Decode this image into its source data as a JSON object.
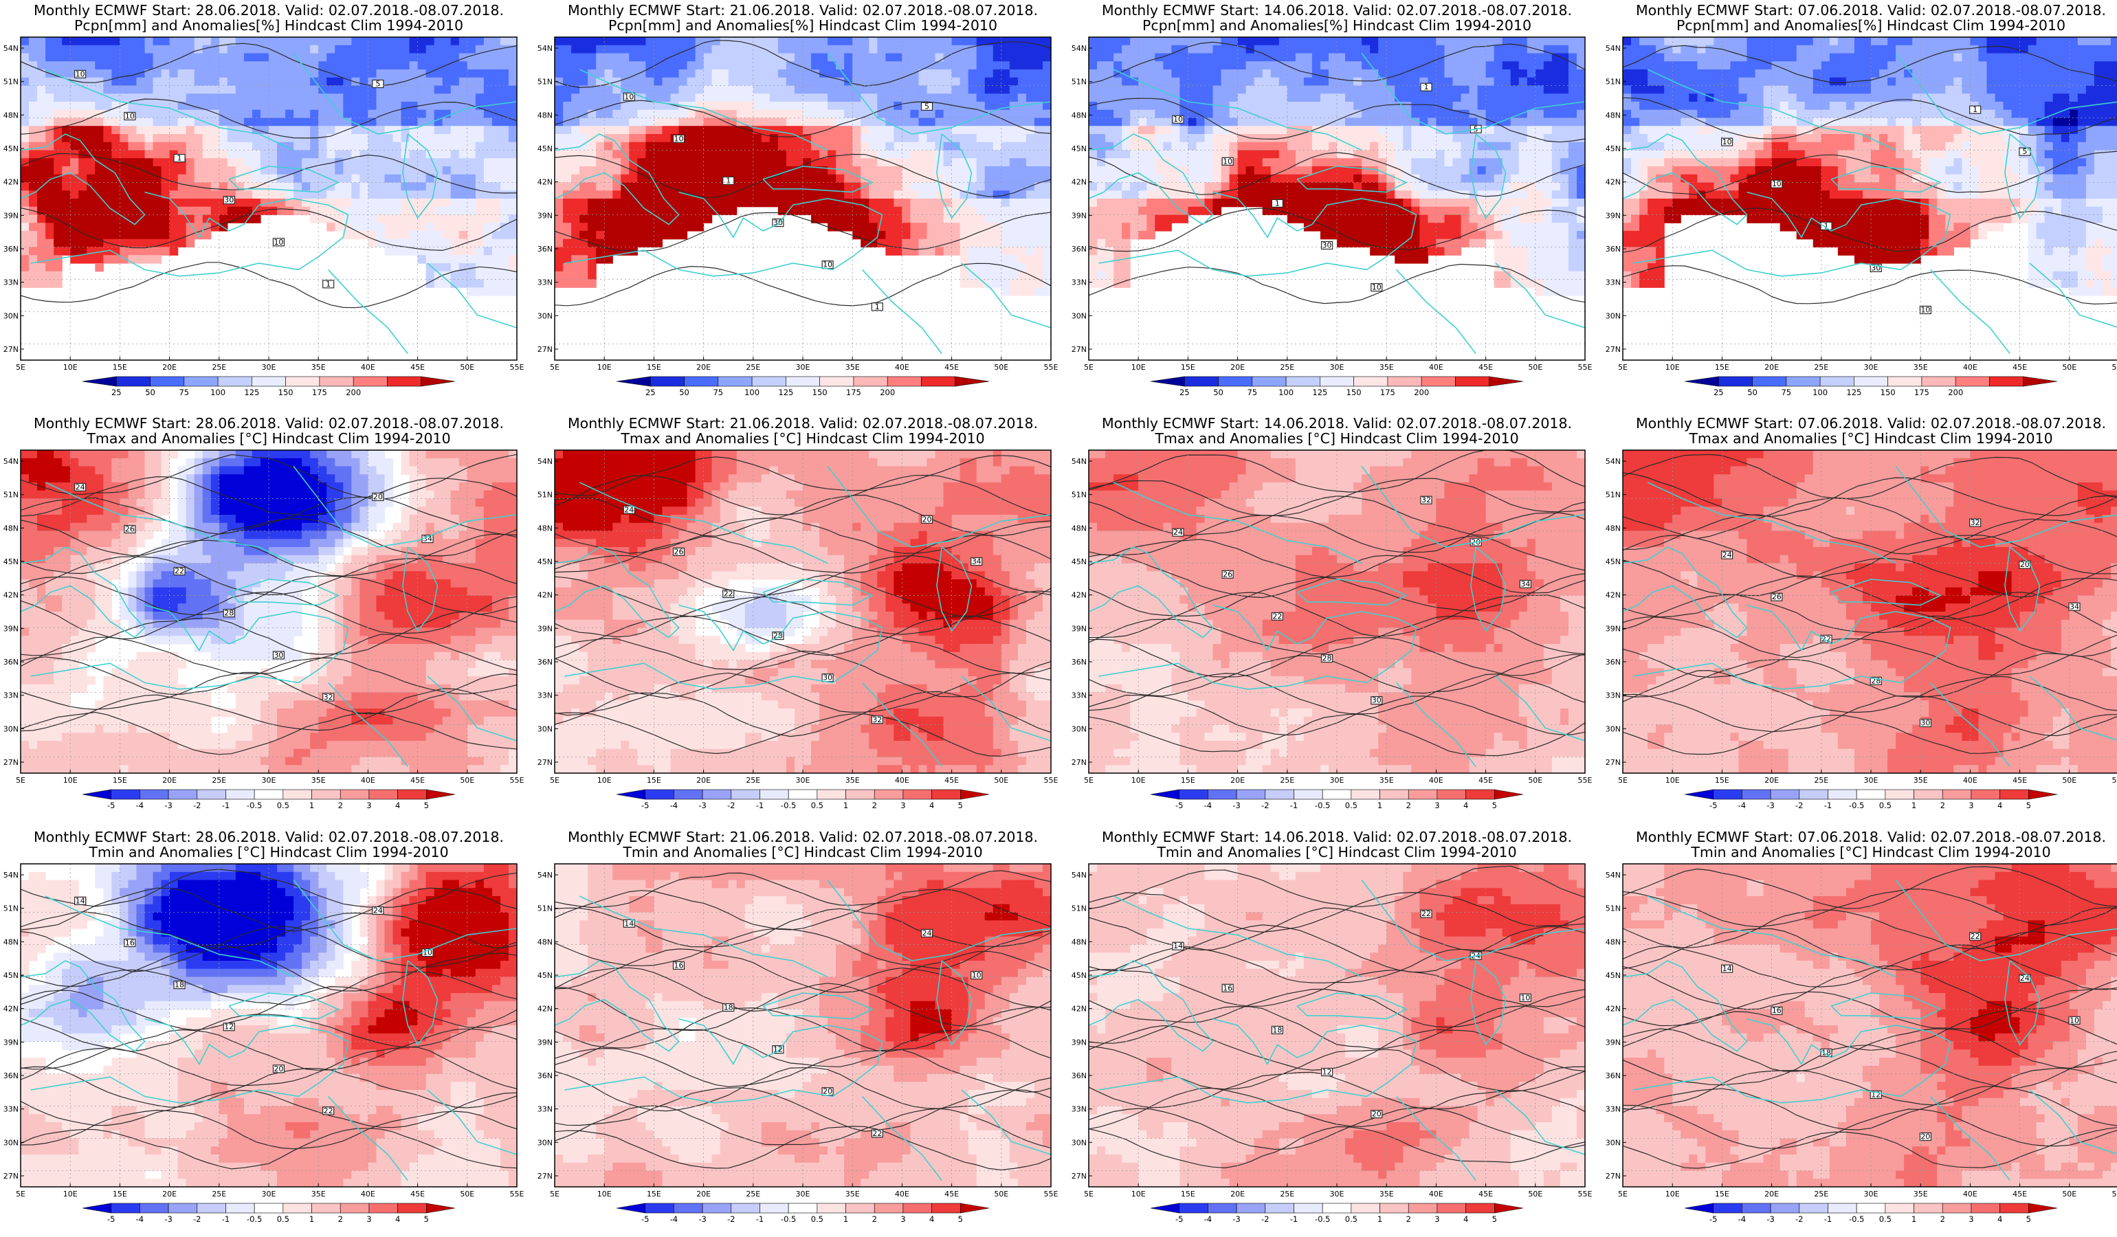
{
  "colors": {
    "background": "#ffffff",
    "coast": "#3fd0d0",
    "contour": "#2a2a2a",
    "precip_scale": [
      "#00009a",
      "#1a2ee0",
      "#4a6cff",
      "#8ea6ff",
      "#c4d0ff",
      "#e9edff",
      "#ffe6e6",
      "#ffb8b8",
      "#ff7f7f",
      "#ee2a2a",
      "#b30000"
    ],
    "temp_scale": [
      "#0000d8",
      "#2b3cf0",
      "#6272f5",
      "#98a3f8",
      "#c6cdfb",
      "#e8ebfd",
      "#ffffff",
      "#fde2e2",
      "#fbc4c4",
      "#f89c9c",
      "#f56f6f",
      "#ee3b3b",
      "#c40000"
    ]
  },
  "map": {
    "lat_labels": [
      "54N",
      "51N",
      "48N",
      "45N",
      "42N",
      "39N",
      "36N",
      "33N",
      "30N",
      "27N"
    ],
    "lon_labels": [
      "5E",
      "10E",
      "15E",
      "20E",
      "25E",
      "30E",
      "35E",
      "40E",
      "45E",
      "50E",
      "55E"
    ]
  },
  "rows": [
    {
      "variable": "Pcpn",
      "subtitle": "Pcpn[mm] and Anomalies[%] Hindcast Clim 1994-2010",
      "colorbar_labels": [
        "25",
        "50",
        "75",
        "100",
        "125",
        "150",
        "175",
        "200"
      ],
      "contour_labels": [
        "10",
        "10",
        "1",
        "30",
        "10",
        "1",
        "5"
      ]
    },
    {
      "variable": "Tmax",
      "subtitle": "Tmax and Anomalies [°C] Hindcast Clim 1994-2010",
      "colorbar_labels": [
        "-5",
        "-4",
        "-3",
        "-2",
        "-1",
        "-0.5",
        "0.5",
        "1",
        "2",
        "3",
        "4",
        "5"
      ],
      "contour_labels": [
        "24",
        "26",
        "22",
        "28",
        "30",
        "32",
        "20",
        "34"
      ]
    },
    {
      "variable": "Tmin",
      "subtitle": "Tmin and Anomalies [°C] Hindcast Clim 1994-2010",
      "colorbar_labels": [
        "-5",
        "-4",
        "-3",
        "-2",
        "-1",
        "-0.5",
        "0.5",
        "1",
        "2",
        "3",
        "4",
        "5"
      ],
      "contour_labels": [
        "14",
        "16",
        "18",
        "12",
        "20",
        "22",
        "24",
        "10"
      ]
    }
  ],
  "columns": [
    {
      "title": "Monthly ECMWF Start: 28.06.2018. Valid: 02.07.2018.-08.07.2018."
    },
    {
      "title": "Monthly ECMWF Start: 21.06.2018. Valid: 02.07.2018.-08.07.2018."
    },
    {
      "title": "Monthly ECMWF Start: 14.06.2018. Valid: 02.07.2018.-08.07.2018."
    },
    {
      "title": "Monthly ECMWF Start: 07.06.2018. Valid: 02.07.2018.-08.07.2018."
    }
  ]
}
